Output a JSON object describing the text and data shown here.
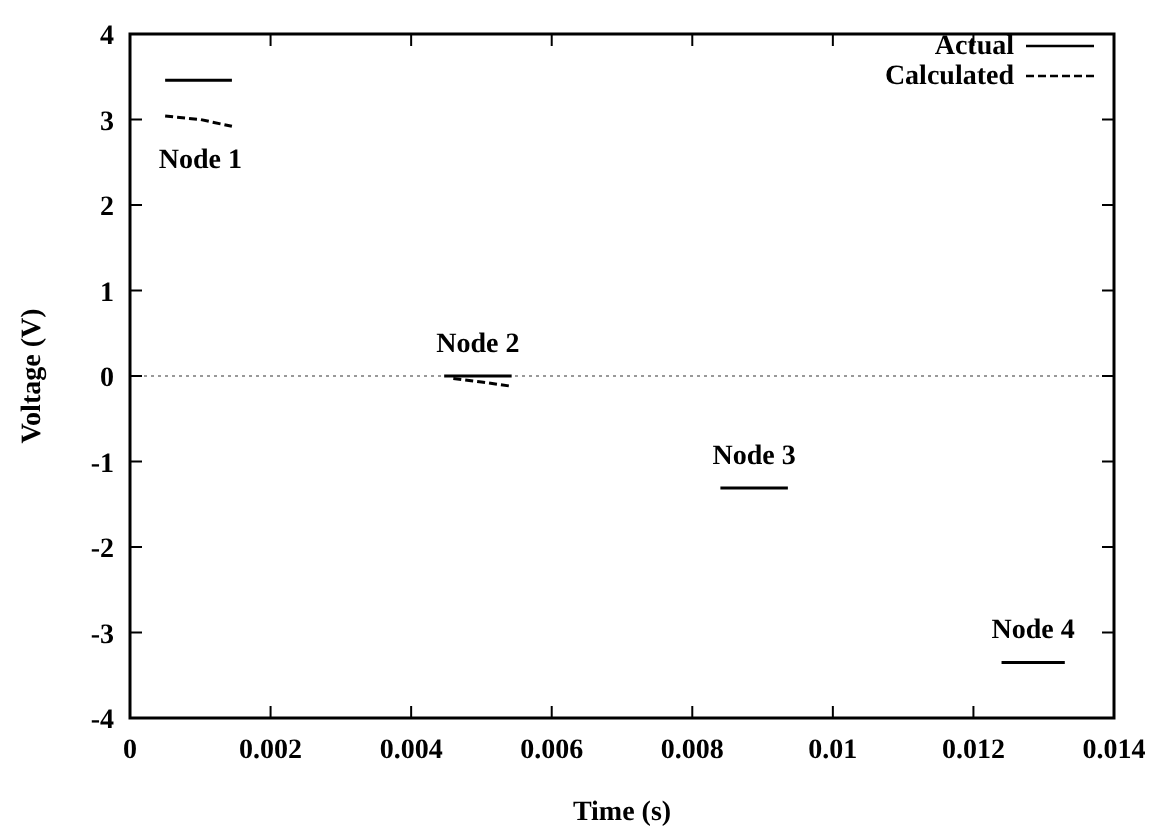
{
  "chart_data": {
    "type": "line",
    "xlabel": "Time (s)",
    "ylabel": "Voltage (V)",
    "xlim": [
      0,
      0.014
    ],
    "xticks": [
      0,
      0.002,
      0.004,
      0.006,
      0.008,
      0.01,
      0.012,
      0.014
    ],
    "ylim": [
      -4,
      4
    ],
    "yticks": [
      -4,
      -3,
      -2,
      -1,
      0,
      1,
      2,
      3,
      4
    ],
    "grid": false,
    "legend": "top right",
    "series": [
      {
        "name": "Actual",
        "color": "#000000",
        "line_style": "solid",
        "x": [
          0.0005,
          0.00145,
          0.003,
          0.00447,
          0.00543,
          0.007,
          0.0084,
          0.00936,
          0.011,
          0.0124,
          0.0133
        ],
        "values": [
          3.46,
          3.46,
          null,
          0,
          0,
          null,
          -1.31,
          -1.31,
          null,
          -3.35,
          -3.35
        ]
      },
      {
        "name": "Calculated",
        "color": "#000000",
        "line_style": "dashed",
        "x": [
          0.0005,
          0.001,
          0.00145,
          0.003,
          0.0046,
          0.005,
          0.00543
        ],
        "values": [
          3.04,
          3.0,
          2.92,
          null,
          -0.03,
          -0.07,
          -0.12
        ]
      }
    ],
    "ref_lines": [
      {
        "axis": "y",
        "value": 0,
        "label": null,
        "color": "#999999",
        "line_style": "dotted"
      }
    ],
    "annotations": [
      {
        "text": "Node 1",
        "x": 0.001,
        "y": 3.0
      },
      {
        "text": "Node 2",
        "x": 0.00495,
        "y": 0
      },
      {
        "text": "Node 3",
        "x": 0.00888,
        "y": -1.31
      },
      {
        "text": "Node 4",
        "x": 0.01285,
        "y": -3.35
      }
    ]
  }
}
